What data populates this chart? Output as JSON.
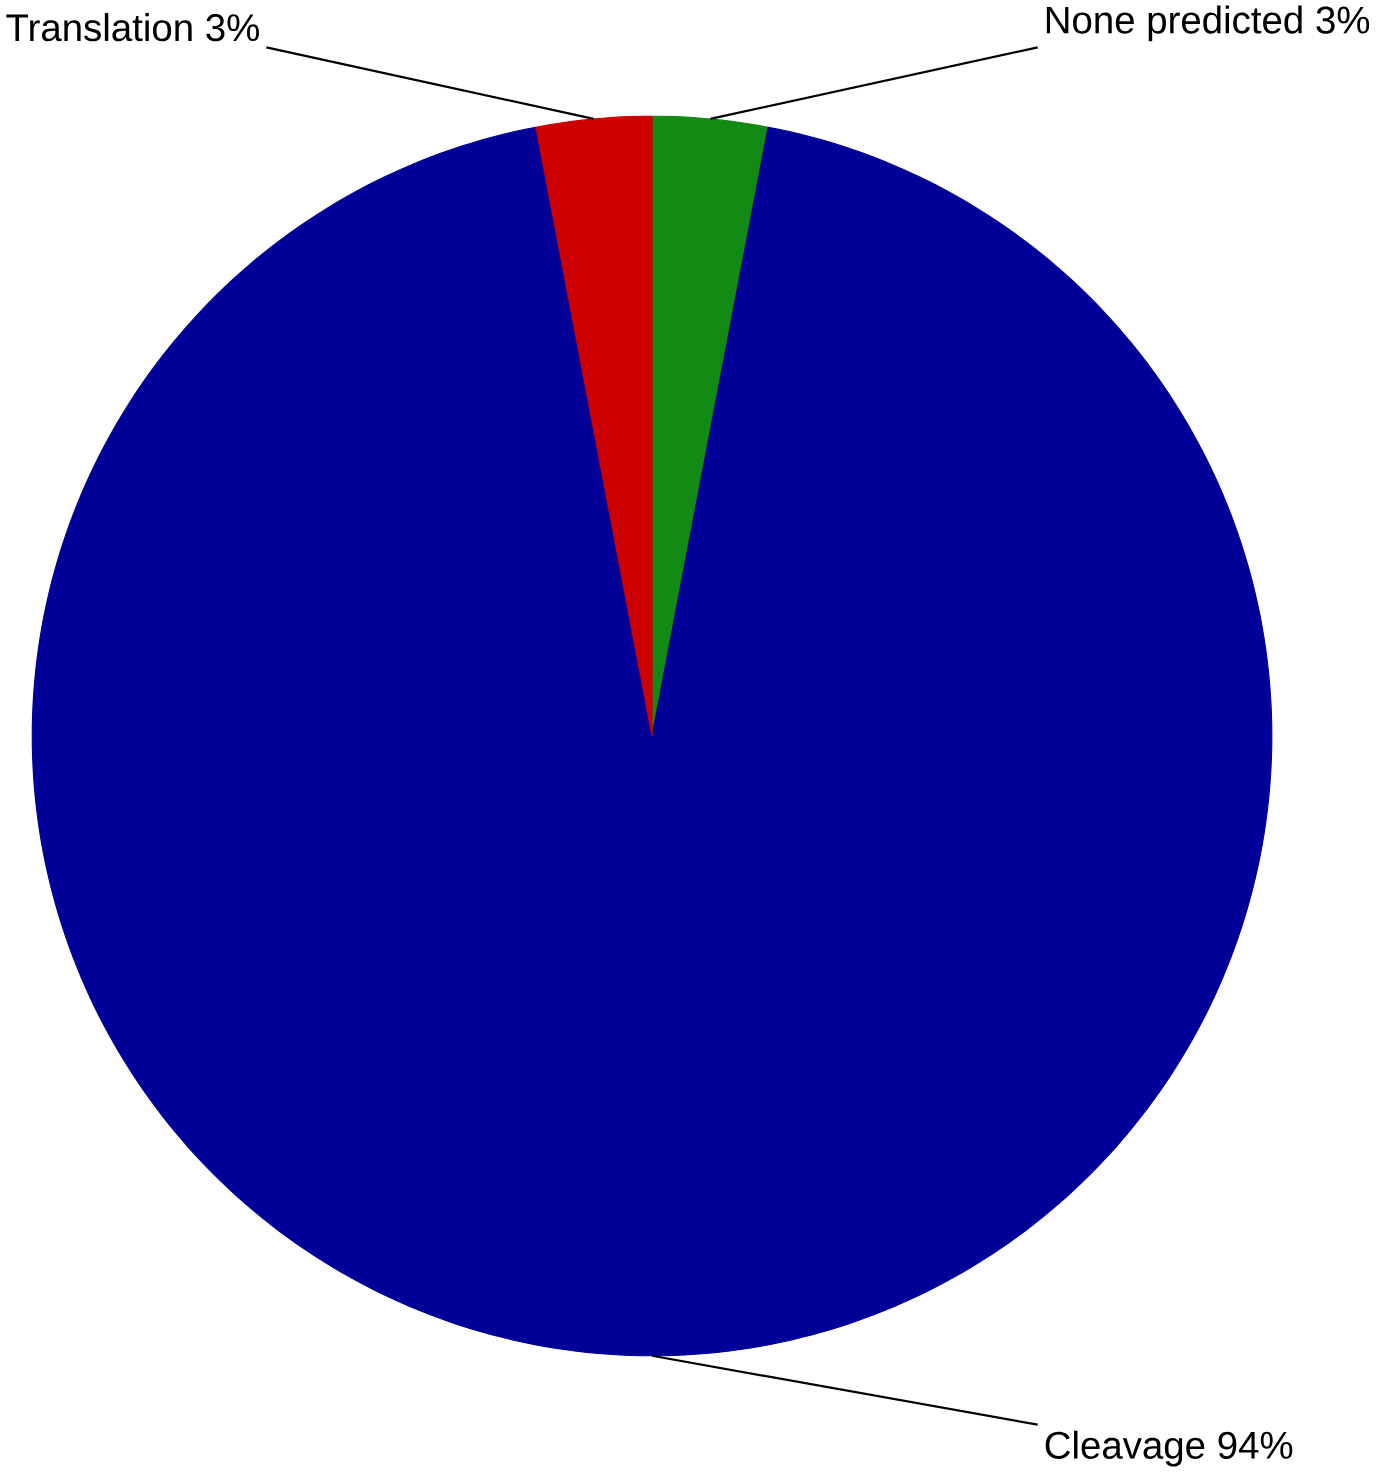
{
  "chart_data": {
    "type": "pie",
    "categories": [
      "None predicted",
      "Cleavage",
      "Translation"
    ],
    "values": [
      3,
      94,
      3
    ],
    "value_labels": [
      "3%",
      "94%",
      "3%"
    ],
    "colors": [
      "#138a13",
      "#000099",
      "#cc0000"
    ]
  }
}
